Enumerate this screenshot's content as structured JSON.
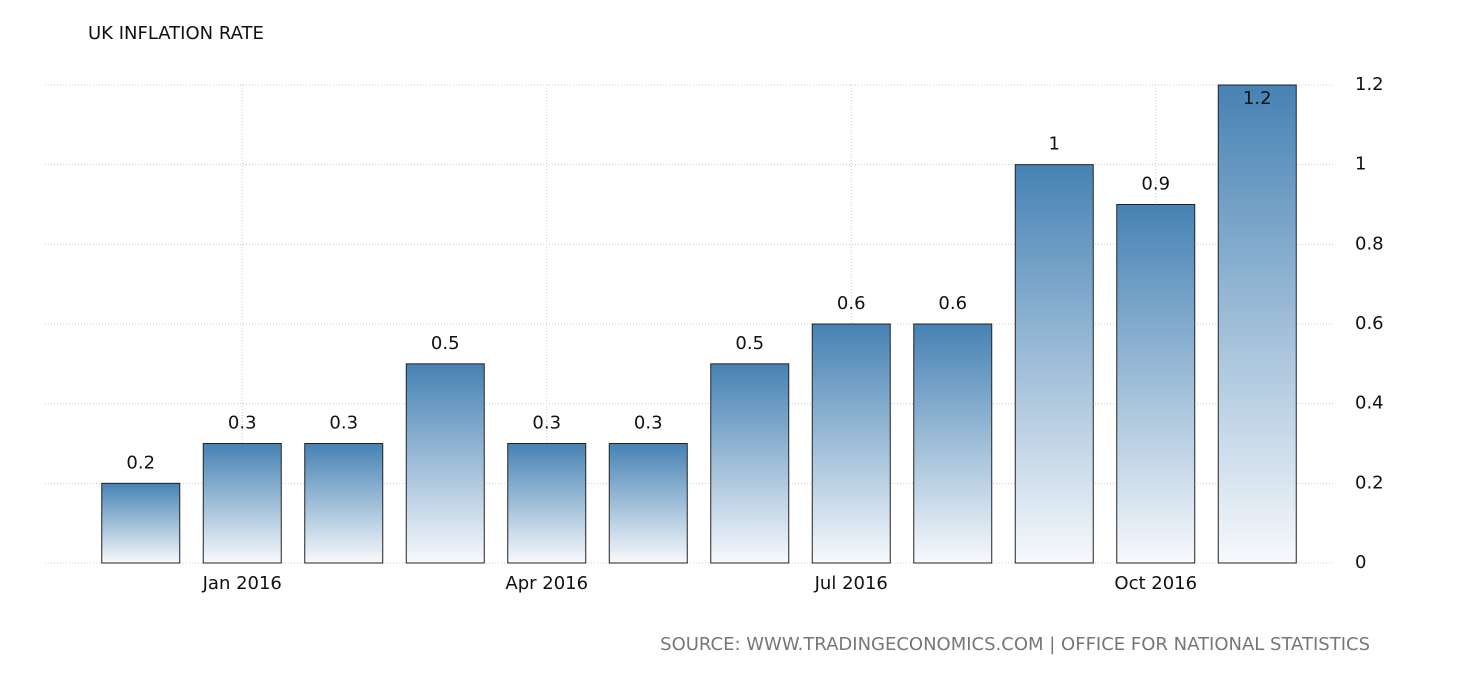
{
  "chart_data": {
    "type": "bar",
    "title": "UK INFLATION RATE",
    "source": "SOURCE: WWW.TRADINGECONOMICS.COM | OFFICE FOR NATIONAL STATISTICS",
    "categories": [
      null,
      "Jan 2016",
      null,
      null,
      "Apr 2016",
      null,
      null,
      "Jul 2016",
      null,
      null,
      "Oct 2016",
      null
    ],
    "values": [
      0.2,
      0.3,
      0.3,
      0.5,
      0.3,
      0.3,
      0.5,
      0.6,
      0.6,
      1,
      0.9,
      1.2
    ],
    "color": "#4682b4",
    "ylim": [
      0,
      1.2
    ],
    "yticks": [
      0,
      0.2,
      0.4,
      0.6,
      0.8,
      1,
      1.2
    ],
    "grid": true
  }
}
